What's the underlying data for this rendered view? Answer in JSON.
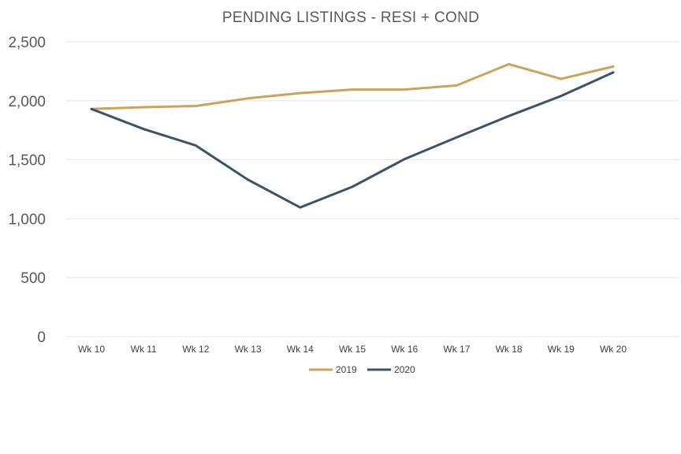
{
  "chart_data": {
    "type": "line",
    "title": "PENDING LISTINGS - RESI + COND",
    "categories": [
      "Wk 10",
      "Wk 11",
      "Wk 12",
      "Wk 13",
      "Wk 14",
      "Wk 15",
      "Wk 16",
      "Wk 17",
      "Wk 18",
      "Wk 19",
      "Wk 20"
    ],
    "series": [
      {
        "name": "2019",
        "color": "#c9a45c",
        "values": [
          1930,
          1945,
          1955,
          2020,
          2065,
          2095,
          2095,
          2130,
          2310,
          2185,
          2290
        ]
      },
      {
        "name": "2020",
        "color": "#3d5463",
        "values": [
          1930,
          1760,
          1620,
          1330,
          1095,
          1270,
          1505,
          1690,
          1870,
          2040,
          2240
        ]
      }
    ],
    "y_ticks": [
      "0",
      "500",
      "1,000",
      "1,500",
      "2,000",
      "2,500"
    ],
    "ylim": [
      0,
      2500
    ],
    "grid": true,
    "legend_position": "bottom"
  }
}
